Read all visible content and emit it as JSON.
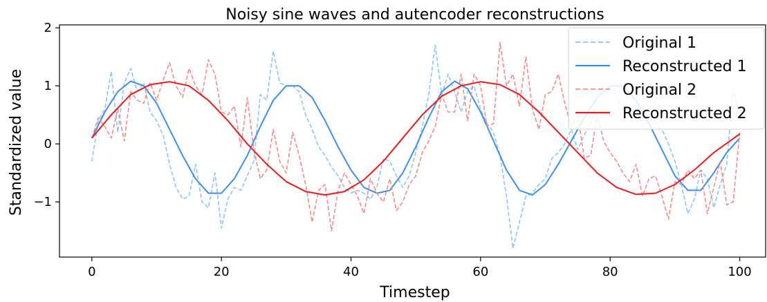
{
  "chart_data": {
    "type": "line",
    "title": "Noisy sine waves and autencoder reconstructions",
    "xlabel": "Timestep",
    "ylabel": "Standardized value",
    "xlim": [
      -5,
      104
    ],
    "ylim": [
      -1.95,
      2.05
    ],
    "xticks": [
      0,
      20,
      40,
      60,
      80,
      100
    ],
    "yticks": [
      -1,
      0,
      1,
      2
    ],
    "grid": false,
    "legend_position": "top-right",
    "series": [
      {
        "name": "Original 1",
        "style": "dashed",
        "color": "#8fc3f5",
        "x": [
          0,
          1,
          2,
          3,
          4,
          5,
          6,
          7,
          8,
          9,
          10,
          11,
          12,
          13,
          14,
          15,
          16,
          17,
          18,
          19,
          20,
          21,
          22,
          23,
          24,
          25,
          26,
          27,
          28,
          29,
          30,
          31,
          32,
          33,
          34,
          35,
          36,
          37,
          38,
          39,
          40,
          41,
          42,
          43,
          44,
          45,
          46,
          47,
          48,
          49,
          50,
          51,
          52,
          53,
          54,
          55,
          56,
          57,
          58,
          59,
          60,
          61,
          62,
          63,
          64,
          65,
          66,
          67,
          68,
          69,
          70,
          71,
          72,
          73,
          74,
          75,
          76,
          77,
          78,
          79,
          80,
          81,
          82,
          83,
          84,
          85,
          86,
          87,
          88,
          89,
          90,
          91,
          92,
          93,
          94,
          95,
          96,
          97,
          98,
          99,
          100
        ],
        "y": [
          -0.3,
          0.4,
          0.6,
          1.25,
          0.2,
          1.05,
          1.3,
          0.9,
          1.05,
          0.55,
          0.4,
          0.15,
          -0.35,
          -0.75,
          -0.95,
          -0.9,
          -0.35,
          -1.0,
          -1.1,
          -0.5,
          -1.45,
          -0.95,
          -0.75,
          -0.8,
          -0.55,
          -0.3,
          0.85,
          0.75,
          1.6,
          1.05,
          1.0,
          1.0,
          0.9,
          0.5,
          0.25,
          -0.05,
          -0.2,
          -0.4,
          -0.55,
          -0.75,
          -0.85,
          -0.8,
          -0.85,
          -0.95,
          -0.75,
          -0.25,
          -0.3,
          -0.55,
          -0.75,
          -0.55,
          -0.15,
          0.3,
          0.85,
          1.7,
          0.85,
          1.2,
          0.9,
          0.55,
          0.9,
          1.0,
          0.6,
          0.35,
          0.2,
          -0.2,
          -0.9,
          -1.8,
          -1.35,
          -0.9,
          -0.85,
          -0.7,
          -0.6,
          -0.25,
          -0.15,
          0.0,
          0.25,
          -0.1,
          0.15,
          0.35,
          0.8,
          1.0,
          1.05,
          0.8,
          0.55,
          0.55,
          0.7,
          0.3,
          0.5,
          0.35,
          0.25,
          0.0,
          -0.3,
          -0.7,
          -1.2,
          -0.95,
          -0.45,
          -0.6,
          -1.1,
          -0.7,
          -0.35,
          0.95,
          0.5
        ]
      },
      {
        "name": "Reconstructed 1",
        "style": "solid",
        "color": "#3d8ee8",
        "x": [
          0,
          2,
          4,
          6,
          8,
          10,
          12,
          14,
          16,
          18,
          20,
          22,
          24,
          26,
          28,
          30,
          32,
          34,
          36,
          38,
          40,
          42,
          44,
          46,
          48,
          50,
          52,
          54,
          56,
          58,
          60,
          62,
          64,
          66,
          68,
          70,
          72,
          74,
          76,
          78,
          80,
          82,
          84,
          86,
          88,
          90,
          92,
          94,
          96,
          98,
          100
        ],
        "y": [
          0.1,
          0.55,
          0.9,
          1.08,
          1.0,
          0.7,
          0.25,
          -0.2,
          -0.6,
          -0.85,
          -0.85,
          -0.6,
          -0.2,
          0.3,
          0.75,
          1.0,
          1.0,
          0.8,
          0.4,
          -0.05,
          -0.45,
          -0.75,
          -0.85,
          -0.8,
          -0.5,
          -0.05,
          0.45,
          0.9,
          1.08,
          0.95,
          0.55,
          0.05,
          -0.45,
          -0.8,
          -0.88,
          -0.7,
          -0.35,
          0.05,
          0.45,
          0.8,
          1.0,
          1.0,
          0.75,
          0.35,
          -0.1,
          -0.55,
          -0.8,
          -0.8,
          -0.5,
          -0.15,
          0.1
        ]
      },
      {
        "name": "Original 2",
        "style": "dashed",
        "color": "#f28a8a",
        "x": [
          0,
          1,
          2,
          3,
          4,
          5,
          6,
          7,
          8,
          9,
          10,
          11,
          12,
          13,
          14,
          15,
          16,
          17,
          18,
          19,
          20,
          21,
          22,
          23,
          24,
          25,
          26,
          27,
          28,
          29,
          30,
          31,
          32,
          33,
          34,
          35,
          36,
          37,
          38,
          39,
          40,
          41,
          42,
          43,
          44,
          45,
          46,
          47,
          48,
          49,
          50,
          51,
          52,
          53,
          54,
          55,
          56,
          57,
          58,
          59,
          60,
          61,
          62,
          63,
          64,
          65,
          66,
          67,
          68,
          69,
          70,
          71,
          72,
          73,
          74,
          75,
          76,
          77,
          78,
          79,
          80,
          81,
          82,
          83,
          84,
          85,
          86,
          87,
          88,
          89,
          90,
          91,
          92,
          93,
          94,
          95,
          96,
          97,
          98,
          99,
          100
        ],
        "y": [
          0.1,
          0.45,
          0.3,
          0.1,
          0.6,
          0.05,
          0.9,
          0.75,
          0.7,
          1.05,
          0.75,
          1.1,
          1.4,
          1.0,
          0.8,
          1.3,
          1.0,
          0.85,
          1.45,
          1.2,
          0.55,
          0.5,
          0.65,
          -0.05,
          0.8,
          -0.1,
          -0.6,
          -0.45,
          0.25,
          -0.3,
          -0.5,
          0.2,
          -0.2,
          -0.7,
          -1.35,
          -0.8,
          -0.7,
          -1.5,
          -0.8,
          -0.5,
          -0.7,
          -0.9,
          -1.2,
          -0.6,
          -0.85,
          -1.0,
          -0.6,
          -1.15,
          -1.0,
          -0.7,
          -0.55,
          -0.15,
          0.05,
          0.3,
          0.85,
          0.55,
          0.55,
          1.2,
          0.4,
          1.2,
          1.0,
          0.3,
          0.35,
          1.75,
          1.0,
          1.2,
          0.65,
          1.5,
          0.6,
          0.25,
          0.85,
          0.9,
          1.2,
          0.7,
          0.3,
          0.5,
          -0.25,
          -0.2,
          0.5,
          0.05,
          -0.15,
          -0.3,
          -0.5,
          -0.65,
          -0.35,
          -0.9,
          -0.6,
          -0.55,
          -0.9,
          -1.3,
          -0.65,
          -0.7,
          -0.45,
          -0.6,
          -0.45,
          -1.2,
          -0.75,
          -0.3,
          -1.05,
          -1.0,
          0.2
        ]
      },
      {
        "name": "Reconstructed 2",
        "style": "solid",
        "color": "#e8191a",
        "x": [
          0,
          3,
          6,
          9,
          12,
          15,
          18,
          21,
          24,
          27,
          30,
          33,
          36,
          39,
          42,
          45,
          48,
          51,
          54,
          57,
          60,
          63,
          66,
          69,
          72,
          75,
          78,
          81,
          84,
          87,
          90,
          93,
          96,
          100
        ],
        "y": [
          0.1,
          0.5,
          0.85,
          1.02,
          1.07,
          1.0,
          0.75,
          0.4,
          0.0,
          -0.35,
          -0.65,
          -0.82,
          -0.88,
          -0.82,
          -0.62,
          -0.3,
          0.1,
          0.5,
          0.82,
          1.0,
          1.07,
          1.02,
          0.85,
          0.55,
          0.2,
          -0.15,
          -0.5,
          -0.75,
          -0.87,
          -0.85,
          -0.7,
          -0.45,
          -0.15,
          0.17
        ]
      }
    ]
  }
}
